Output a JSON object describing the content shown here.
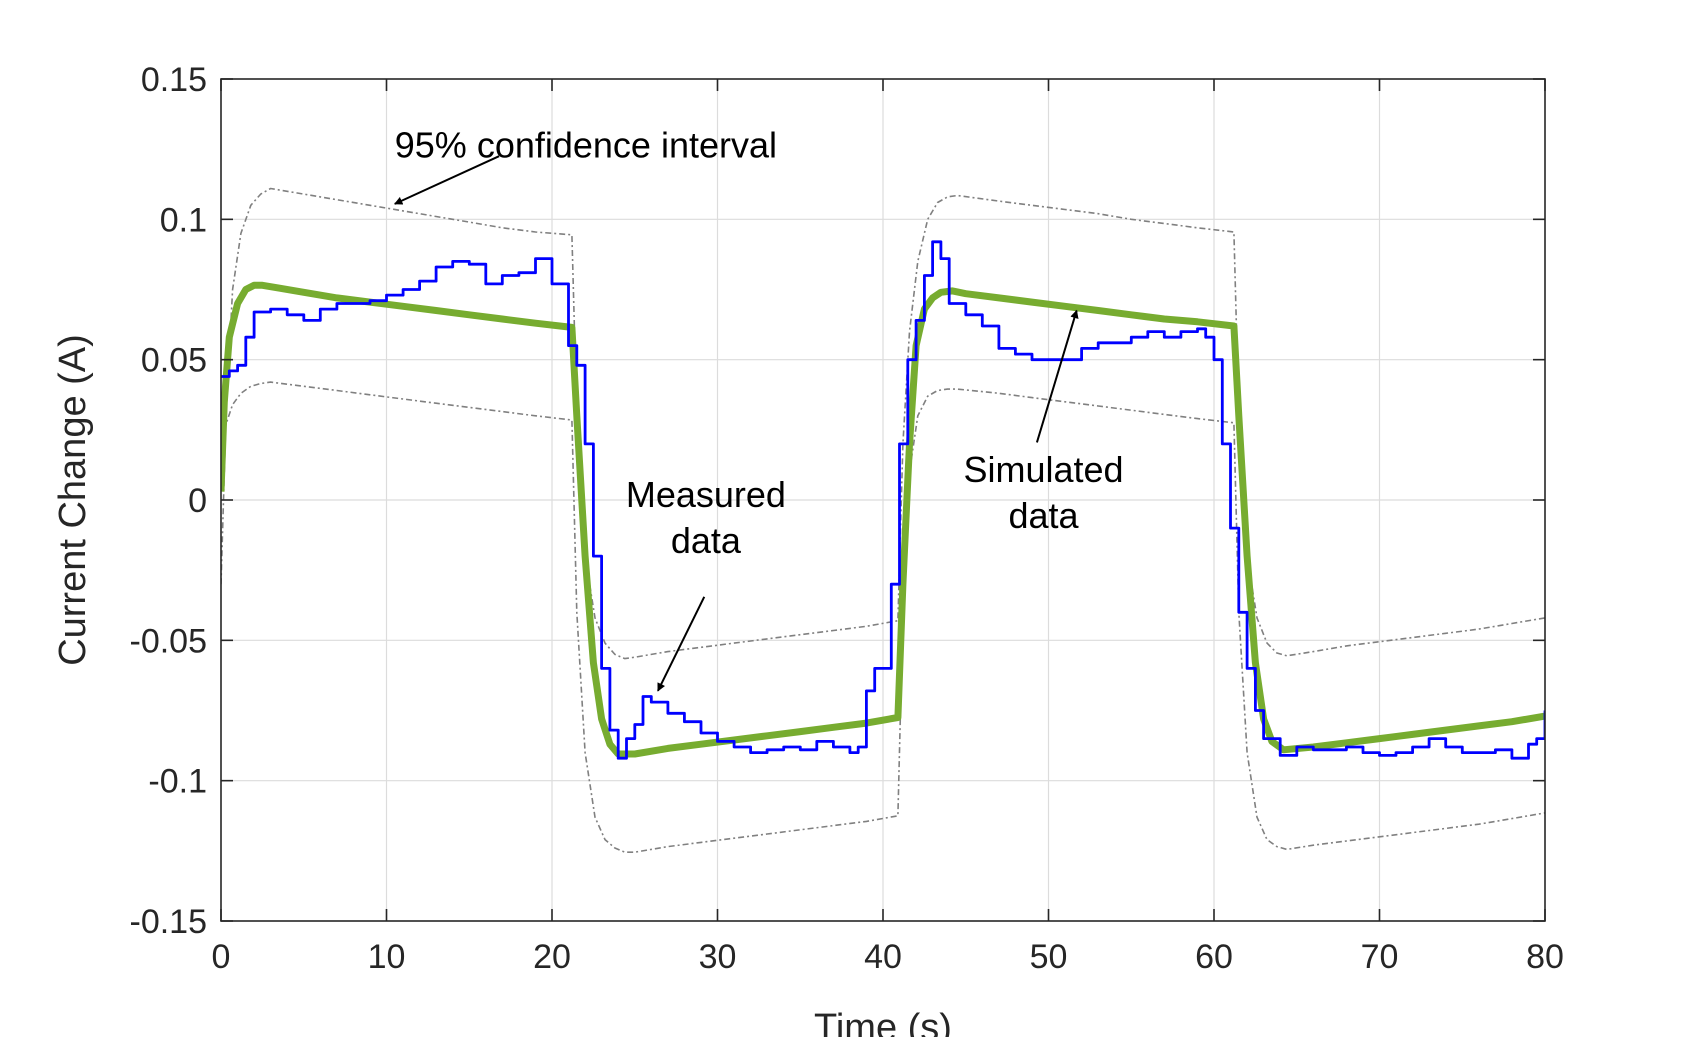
{
  "chart_data": {
    "type": "line",
    "title": "",
    "xlabel": "Time (s)",
    "ylabel": "Current Change (A)",
    "xlim": [
      0,
      80
    ],
    "ylim": [
      -0.15,
      0.15
    ],
    "grid": true,
    "xticks": [
      0,
      10,
      20,
      30,
      40,
      50,
      60,
      70,
      80
    ],
    "xtick_labels": [
      "0",
      "10",
      "20",
      "30",
      "40",
      "50",
      "60",
      "70",
      "80"
    ],
    "yticks": [
      -0.15,
      -0.1,
      -0.05,
      0,
      0.05,
      0.1,
      0.15
    ],
    "ytick_labels": [
      "-0.15",
      "-0.1",
      "-0.05",
      "0",
      "0.05",
      "0.1",
      "0.15"
    ],
    "colors": {
      "simulated": "#77ac30",
      "measured": "#0000ff",
      "confidence": "#808080",
      "grid": "#dcdcdc",
      "axes": "#262626"
    },
    "series": [
      {
        "name": "Simulated data",
        "x": [
          0,
          0.2,
          0.5,
          1.0,
          1.5,
          2.0,
          2.5,
          3.5,
          5,
          7,
          9,
          11,
          13,
          15,
          17,
          19,
          21.2,
          21.5,
          22,
          22.5,
          23,
          23.5,
          24,
          25,
          27,
          29,
          31,
          33,
          35,
          37,
          39,
          40.9,
          41.2,
          41.6,
          42,
          42.5,
          43,
          43.5,
          44.2,
          45,
          47,
          49,
          51,
          53,
          55,
          57,
          59,
          61.2,
          61.5,
          62,
          62.5,
          63,
          63.5,
          64.2,
          66,
          68,
          70,
          72,
          74,
          76,
          78,
          80
        ],
        "values": [
          0.003,
          0.035,
          0.058,
          0.07,
          0.075,
          0.0765,
          0.0765,
          0.0755,
          0.074,
          0.072,
          0.0705,
          0.069,
          0.0675,
          0.066,
          0.0645,
          0.063,
          0.0615,
          0.03,
          -0.02,
          -0.058,
          -0.078,
          -0.087,
          -0.0905,
          -0.0905,
          -0.0885,
          -0.087,
          -0.0855,
          -0.084,
          -0.0825,
          -0.081,
          -0.0795,
          -0.0775,
          -0.03,
          0.02,
          0.055,
          0.068,
          0.072,
          0.074,
          0.0745,
          0.0735,
          0.072,
          0.0705,
          0.069,
          0.0675,
          0.066,
          0.0645,
          0.0635,
          0.062,
          0.03,
          -0.02,
          -0.058,
          -0.078,
          -0.086,
          -0.089,
          -0.088,
          -0.0865,
          -0.085,
          -0.0835,
          -0.082,
          -0.0805,
          -0.079,
          -0.077
        ]
      },
      {
        "name": "Measured data",
        "x": [
          0,
          0.5,
          1,
          1.5,
          2,
          3,
          4,
          5,
          6,
          7,
          8,
          9,
          10,
          11,
          12,
          13,
          14,
          15,
          16,
          17,
          18,
          19,
          19.5,
          20,
          21,
          21.5,
          22,
          22.5,
          23,
          23.5,
          24,
          24.5,
          25,
          25.5,
          26,
          27,
          28,
          29,
          30,
          31,
          32,
          33,
          34,
          35,
          36,
          37,
          38,
          38.5,
          39,
          39.5,
          40,
          40.5,
          41,
          41.5,
          42,
          42.5,
          43,
          43.5,
          44,
          45,
          46,
          47,
          48,
          49,
          50,
          51,
          52,
          53,
          54,
          55,
          56,
          57,
          58,
          59,
          59.5,
          60,
          60.5,
          61,
          61.5,
          62,
          62.5,
          63,
          64,
          65,
          66,
          67,
          68,
          69,
          70,
          71,
          72,
          73,
          74,
          75,
          76,
          77,
          78,
          79,
          79.5,
          80
        ],
        "values": [
          0.044,
          0.046,
          0.048,
          0.058,
          0.067,
          0.068,
          0.066,
          0.064,
          0.068,
          0.07,
          0.07,
          0.071,
          0.073,
          0.075,
          0.078,
          0.083,
          0.085,
          0.084,
          0.077,
          0.08,
          0.081,
          0.086,
          0.086,
          0.077,
          0.055,
          0.048,
          0.02,
          -0.02,
          -0.06,
          -0.082,
          -0.092,
          -0.085,
          -0.08,
          -0.07,
          -0.072,
          -0.076,
          -0.079,
          -0.083,
          -0.086,
          -0.088,
          -0.09,
          -0.089,
          -0.088,
          -0.089,
          -0.086,
          -0.088,
          -0.09,
          -0.088,
          -0.068,
          -0.06,
          -0.06,
          -0.03,
          0.02,
          0.05,
          0.064,
          0.08,
          0.092,
          0.086,
          0.07,
          0.066,
          0.062,
          0.054,
          0.052,
          0.05,
          0.05,
          0.05,
          0.054,
          0.056,
          0.056,
          0.058,
          0.06,
          0.058,
          0.06,
          0.061,
          0.058,
          0.05,
          0.02,
          -0.01,
          -0.04,
          -0.06,
          -0.075,
          -0.085,
          -0.091,
          -0.088,
          -0.089,
          -0.089,
          -0.088,
          -0.09,
          -0.091,
          -0.09,
          -0.088,
          -0.085,
          -0.088,
          -0.09,
          -0.09,
          -0.089,
          -0.092,
          -0.087,
          -0.085,
          -0.075
        ]
      },
      {
        "name": "95% confidence interval (upper)",
        "x": [
          0,
          0.3,
          0.7,
          1.2,
          1.8,
          2.4,
          3,
          5,
          7,
          9,
          11,
          13,
          15,
          17,
          19,
          21.2,
          21.5,
          22,
          22.6,
          23.2,
          23.8,
          24.4,
          25,
          27,
          29,
          31,
          33,
          35,
          37,
          39,
          40.9,
          41.2,
          41.6,
          42.1,
          42.7,
          43.3,
          43.9,
          44.5,
          47,
          49,
          51,
          53,
          55,
          57,
          59,
          61.2,
          61.5,
          62,
          62.6,
          63.2,
          63.8,
          64.4,
          66,
          68,
          70,
          72,
          74,
          76,
          78,
          80
        ],
        "values": [
          -0.03,
          0.03,
          0.075,
          0.095,
          0.105,
          0.109,
          0.111,
          0.109,
          0.107,
          0.105,
          0.103,
          0.101,
          0.099,
          0.097,
          0.0955,
          0.0945,
          0.03,
          -0.02,
          -0.042,
          -0.051,
          -0.055,
          -0.0565,
          -0.056,
          -0.054,
          -0.0525,
          -0.051,
          -0.0495,
          -0.048,
          -0.0465,
          -0.045,
          -0.043,
          0.02,
          0.06,
          0.085,
          0.1,
          0.106,
          0.108,
          0.1085,
          0.1065,
          0.105,
          0.1035,
          0.102,
          0.1,
          0.0985,
          0.097,
          0.0955,
          0.03,
          -0.02,
          -0.042,
          -0.051,
          -0.0545,
          -0.0555,
          -0.054,
          -0.052,
          -0.0505,
          -0.049,
          -0.0475,
          -0.046,
          -0.044,
          -0.042
        ]
      },
      {
        "name": "95% confidence interval (lower)",
        "x": [
          0,
          0.3,
          0.7,
          1.2,
          1.8,
          2.4,
          3,
          5,
          7,
          9,
          11,
          13,
          15,
          17,
          19,
          21.2,
          21.5,
          22,
          22.6,
          23.2,
          23.8,
          24.4,
          25,
          27,
          29,
          31,
          33,
          35,
          37,
          39,
          40.9,
          41.2,
          41.6,
          42.1,
          42.7,
          43.3,
          43.9,
          44.5,
          47,
          49,
          51,
          53,
          55,
          57,
          59,
          61.2,
          61.5,
          62,
          62.6,
          63.2,
          63.8,
          64.4,
          66,
          68,
          70,
          72,
          74,
          76,
          78,
          80
        ],
        "values": [
          0.02,
          0.027,
          0.034,
          0.038,
          0.0405,
          0.0415,
          0.042,
          0.0405,
          0.039,
          0.0375,
          0.036,
          0.0345,
          0.033,
          0.0315,
          0.03,
          0.0285,
          -0.04,
          -0.09,
          -0.113,
          -0.121,
          -0.124,
          -0.1255,
          -0.1255,
          -0.1235,
          -0.122,
          -0.1205,
          -0.119,
          -0.1175,
          -0.116,
          -0.1145,
          -0.1125,
          -0.04,
          0.01,
          0.03,
          0.037,
          0.039,
          0.0395,
          0.0395,
          0.038,
          0.0365,
          0.035,
          0.0335,
          0.032,
          0.0305,
          0.029,
          0.0275,
          -0.04,
          -0.09,
          -0.113,
          -0.121,
          -0.1235,
          -0.1245,
          -0.123,
          -0.1215,
          -0.12,
          -0.1185,
          -0.117,
          -0.1155,
          -0.1135,
          -0.1115
        ]
      }
    ],
    "annotations": [
      {
        "name": "confidence-interval",
        "lines": [
          "95% confidence interval"
        ],
        "text_at": [
          10.5,
          0.122
        ],
        "anchor": "start",
        "arrow_from": [
          16.8,
          0.1225
        ],
        "arrow_to": [
          10.5,
          0.1055
        ]
      },
      {
        "name": "measured-data",
        "lines": [
          "Measured",
          "data"
        ],
        "text_at": [
          29.3,
          -0.0025
        ],
        "anchor": "middle",
        "arrow_from": [
          29.2,
          -0.0345
        ],
        "arrow_to": [
          26.4,
          -0.068
        ]
      },
      {
        "name": "simulated-data",
        "lines": [
          "Simulated",
          "data"
        ],
        "text_at": [
          49.7,
          0.0065
        ],
        "anchor": "middle",
        "arrow_from": [
          49.3,
          0.0205
        ],
        "arrow_to": [
          51.7,
          0.0675
        ]
      }
    ]
  }
}
